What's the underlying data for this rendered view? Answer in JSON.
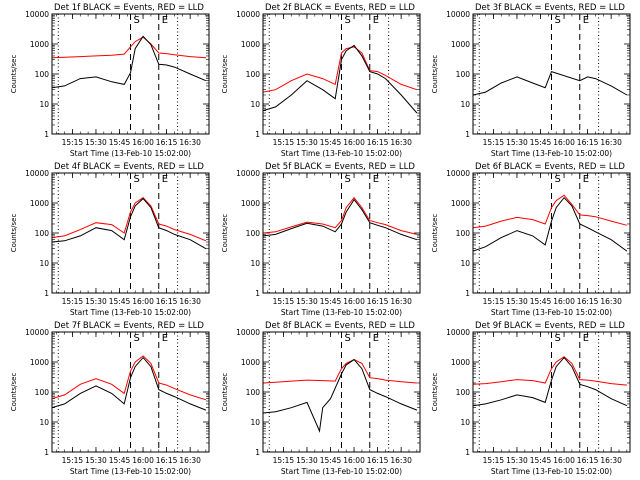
{
  "shared": {
    "ylabel": "Counts/sec",
    "xlabel": "Start Time (13-Feb-10 15:02:00)",
    "xticks": [
      "15:15",
      "15:30",
      "15:45",
      "16:00",
      "16:15",
      "16:30"
    ],
    "yticks": [
      "1",
      "10",
      "100",
      "1000",
      "10000"
    ],
    "marker_S": "S",
    "marker_E": "E",
    "series_colors": {
      "black": "#000000",
      "red": "#ff0000"
    }
  },
  "chart_data": [
    {
      "type": "line",
      "title": "Det 1f BLACK = Events, RED = LLD",
      "ylim": [
        1,
        10000
      ],
      "yscale": "log",
      "xlim": [
        "15:02",
        "16:42"
      ],
      "dotted_lines_x": [
        "15:06",
        "16:22"
      ],
      "dashed_lines_x": [
        "15:52",
        "16:10"
      ],
      "series": [
        {
          "color": "black",
          "x": [
            "15:02",
            "15:10",
            "15:20",
            "15:30",
            "15:40",
            "15:48",
            "15:52",
            "15:55",
            "16:00",
            "16:05",
            "16:10",
            "16:15",
            "16:20",
            "16:30",
            "16:40"
          ],
          "y": [
            35,
            40,
            70,
            80,
            55,
            45,
            110,
            700,
            1800,
            950,
            210,
            200,
            170,
            100,
            60
          ]
        },
        {
          "color": "red",
          "x": [
            "15:02",
            "15:10",
            "15:20",
            "15:30",
            "15:40",
            "15:48",
            "15:52",
            "15:55",
            "16:00",
            "16:05",
            "16:10",
            "16:15",
            "16:20",
            "16:30",
            "16:40"
          ],
          "y": [
            350,
            360,
            380,
            400,
            420,
            460,
            800,
            1200,
            1700,
            1000,
            500,
            480,
            440,
            380,
            350
          ]
        }
      ]
    },
    {
      "type": "line",
      "title": "Det 2f BLACK = Events, RED = LLD",
      "ylim": [
        1,
        10000
      ],
      "yscale": "log",
      "xlim": [
        "15:02",
        "16:42"
      ],
      "dotted_lines_x": [
        "15:06",
        "16:22"
      ],
      "dashed_lines_x": [
        "15:52",
        "16:10"
      ],
      "series": [
        {
          "color": "black",
          "x": [
            "15:02",
            "15:10",
            "15:20",
            "15:30",
            "15:40",
            "15:48",
            "15:52",
            "15:55",
            "16:00",
            "16:05",
            "16:10",
            "16:15",
            "16:20",
            "16:30",
            "16:40"
          ],
          "y": [
            6,
            8,
            20,
            60,
            30,
            15,
            300,
            600,
            900,
            400,
            120,
            100,
            70,
            20,
            5
          ]
        },
        {
          "color": "red",
          "x": [
            "15:02",
            "15:10",
            "15:20",
            "15:30",
            "15:40",
            "15:48",
            "15:52",
            "15:55",
            "16:00",
            "16:05",
            "16:10",
            "16:15",
            "16:20",
            "16:30",
            "16:40"
          ],
          "y": [
            25,
            30,
            60,
            100,
            70,
            45,
            500,
            700,
            800,
            500,
            130,
            120,
            90,
            45,
            30
          ]
        }
      ]
    },
    {
      "type": "line",
      "title": "Det 3f BLACK = Events, RED = LLD",
      "ylim": [
        1,
        10000
      ],
      "yscale": "log",
      "xlim": [
        "15:02",
        "16:42"
      ],
      "dotted_lines_x": [
        "15:06",
        "16:22"
      ],
      "dashed_lines_x": [
        "15:52",
        "16:10"
      ],
      "series": [
        {
          "color": "black",
          "x": [
            "15:02",
            "15:10",
            "15:20",
            "15:30",
            "15:40",
            "15:48",
            "15:52",
            "16:10",
            "16:15",
            "16:20",
            "16:30",
            "16:40"
          ],
          "y": [
            20,
            25,
            50,
            80,
            50,
            35,
            120,
            60,
            80,
            70,
            40,
            20
          ]
        }
      ]
    },
    {
      "type": "line",
      "title": "Det 4f BLACK = Events, RED = LLD",
      "ylim": [
        1,
        10000
      ],
      "yscale": "log",
      "xlim": [
        "15:02",
        "16:42"
      ],
      "dotted_lines_x": [
        "15:06",
        "16:22"
      ],
      "dashed_lines_x": [
        "15:52",
        "16:10"
      ],
      "series": [
        {
          "color": "black",
          "x": [
            "15:02",
            "15:10",
            "15:20",
            "15:30",
            "15:40",
            "15:48",
            "15:52",
            "15:55",
            "16:00",
            "16:05",
            "16:10",
            "16:15",
            "16:20",
            "16:30",
            "16:40"
          ],
          "y": [
            50,
            55,
            80,
            150,
            120,
            60,
            350,
            800,
            1400,
            700,
            150,
            120,
            90,
            60,
            30
          ]
        },
        {
          "color": "red",
          "x": [
            "15:02",
            "15:10",
            "15:20",
            "15:30",
            "15:40",
            "15:48",
            "15:52",
            "15:55",
            "16:00",
            "16:05",
            "16:10",
            "16:15",
            "16:20",
            "16:30",
            "16:40"
          ],
          "y": [
            70,
            80,
            130,
            220,
            190,
            100,
            500,
            1000,
            1500,
            800,
            200,
            170,
            130,
            90,
            55
          ]
        }
      ]
    },
    {
      "type": "line",
      "title": "Det 5f BLACK = Events, RED = LLD",
      "ylim": [
        1,
        10000
      ],
      "yscale": "log",
      "xlim": [
        "15:02",
        "16:42"
      ],
      "dotted_lines_x": [
        "15:06",
        "16:22"
      ],
      "dashed_lines_x": [
        "15:52",
        "16:10"
      ],
      "series": [
        {
          "color": "black",
          "x": [
            "15:02",
            "15:10",
            "15:20",
            "15:30",
            "15:40",
            "15:48",
            "15:52",
            "15:55",
            "16:00",
            "16:05",
            "16:10",
            "16:15",
            "16:20",
            "16:30",
            "16:40"
          ],
          "y": [
            80,
            90,
            140,
            210,
            170,
            110,
            200,
            500,
            1300,
            600,
            220,
            180,
            150,
            90,
            60
          ]
        },
        {
          "color": "red",
          "x": [
            "15:02",
            "15:10",
            "15:20",
            "15:30",
            "15:40",
            "15:48",
            "15:52",
            "15:55",
            "16:00",
            "16:05",
            "16:10",
            "16:15",
            "16:20",
            "16:30",
            "16:40"
          ],
          "y": [
            100,
            110,
            160,
            230,
            200,
            150,
            260,
            700,
            1500,
            700,
            260,
            220,
            190,
            120,
            90
          ]
        }
      ]
    },
    {
      "type": "line",
      "title": "Det 6f BLACK = Events, RED = LLD",
      "ylim": [
        1,
        10000
      ],
      "yscale": "log",
      "xlim": [
        "15:02",
        "16:42"
      ],
      "dotted_lines_x": [
        "15:06",
        "16:22"
      ],
      "dashed_lines_x": [
        "15:52",
        "16:10"
      ],
      "series": [
        {
          "color": "black",
          "x": [
            "15:02",
            "15:10",
            "15:20",
            "15:30",
            "15:40",
            "15:48",
            "15:52",
            "15:55",
            "16:00",
            "16:05",
            "16:10",
            "16:15",
            "16:20",
            "16:30",
            "16:40"
          ],
          "y": [
            25,
            35,
            70,
            120,
            80,
            40,
            250,
            700,
            1500,
            800,
            200,
            150,
            110,
            60,
            25
          ]
        },
        {
          "color": "red",
          "x": [
            "15:02",
            "15:10",
            "15:20",
            "15:30",
            "15:40",
            "15:48",
            "15:52",
            "15:55",
            "16:00",
            "16:05",
            "16:10",
            "16:15",
            "16:20",
            "16:30",
            "16:40"
          ],
          "y": [
            150,
            170,
            250,
            330,
            280,
            200,
            700,
            1200,
            1800,
            900,
            400,
            380,
            350,
            250,
            180
          ]
        }
      ]
    },
    {
      "type": "line",
      "title": "Det 7f BLACK = Events, RED = LLD",
      "ylim": [
        1,
        10000
      ],
      "yscale": "log",
      "xlim": [
        "15:02",
        "16:42"
      ],
      "dotted_lines_x": [
        "15:06",
        "16:22"
      ],
      "dashed_lines_x": [
        "15:52",
        "16:10"
      ],
      "series": [
        {
          "color": "black",
          "x": [
            "15:02",
            "15:10",
            "15:20",
            "15:30",
            "15:40",
            "15:48",
            "15:52",
            "15:55",
            "16:00",
            "16:05",
            "16:10",
            "16:15",
            "16:20",
            "16:30",
            "16:40"
          ],
          "y": [
            30,
            40,
            90,
            160,
            90,
            40,
            300,
            700,
            1400,
            700,
            120,
            90,
            70,
            40,
            25
          ]
        },
        {
          "color": "red",
          "x": [
            "15:02",
            "15:10",
            "15:20",
            "15:30",
            "15:40",
            "15:48",
            "15:52",
            "15:55",
            "16:00",
            "16:05",
            "16:10",
            "16:15",
            "16:20",
            "16:30",
            "16:40"
          ],
          "y": [
            60,
            80,
            180,
            280,
            180,
            90,
            500,
            1000,
            1600,
            900,
            200,
            170,
            130,
            80,
            55
          ]
        }
      ]
    },
    {
      "type": "line",
      "title": "Det 8f BLACK = Events, RED = LLD",
      "ylim": [
        1,
        10000
      ],
      "yscale": "log",
      "xlim": [
        "15:02",
        "16:42"
      ],
      "dotted_lines_x": [
        "15:06",
        "16:22"
      ],
      "dashed_lines_x": [
        "15:52",
        "16:10"
      ],
      "series": [
        {
          "color": "black",
          "x": [
            "15:02",
            "15:10",
            "15:20",
            "15:30",
            "15:38",
            "15:40",
            "15:45",
            "15:52",
            "15:55",
            "16:00",
            "16:05",
            "16:10",
            "16:15",
            "16:20",
            "16:30",
            "16:40"
          ],
          "y": [
            20,
            22,
            30,
            45,
            5,
            30,
            60,
            400,
            800,
            1200,
            600,
            120,
            90,
            70,
            40,
            25
          ]
        },
        {
          "color": "red",
          "x": [
            "15:02",
            "15:10",
            "15:20",
            "15:30",
            "15:40",
            "15:48",
            "15:52",
            "15:55",
            "16:00",
            "16:05",
            "16:10",
            "16:15",
            "16:20",
            "16:30",
            "16:40"
          ],
          "y": [
            200,
            210,
            230,
            250,
            240,
            230,
            600,
            900,
            1200,
            900,
            300,
            280,
            250,
            220,
            200
          ]
        }
      ]
    },
    {
      "type": "line",
      "title": "Det 9f BLACK = Events, RED = LLD",
      "ylim": [
        1,
        10000
      ],
      "yscale": "log",
      "xlim": [
        "15:02",
        "16:42"
      ],
      "dotted_lines_x": [
        "15:06",
        "16:22"
      ],
      "dashed_lines_x": [
        "15:52",
        "16:10"
      ],
      "series": [
        {
          "color": "black",
          "x": [
            "15:02",
            "15:10",
            "15:20",
            "15:30",
            "15:40",
            "15:48",
            "15:52",
            "15:55",
            "16:00",
            "16:05",
            "16:10",
            "16:15",
            "16:20",
            "16:30",
            "16:40"
          ],
          "y": [
            35,
            40,
            55,
            80,
            65,
            45,
            250,
            700,
            1400,
            700,
            180,
            150,
            120,
            60,
            35
          ]
        },
        {
          "color": "red",
          "x": [
            "15:02",
            "15:10",
            "15:20",
            "15:30",
            "15:40",
            "15:48",
            "15:52",
            "15:55",
            "16:00",
            "16:05",
            "16:10",
            "16:15",
            "16:20",
            "16:30",
            "16:40"
          ],
          "y": [
            180,
            190,
            220,
            260,
            240,
            200,
            600,
            1000,
            1500,
            900,
            260,
            250,
            230,
            190,
            170
          ]
        }
      ]
    }
  ]
}
